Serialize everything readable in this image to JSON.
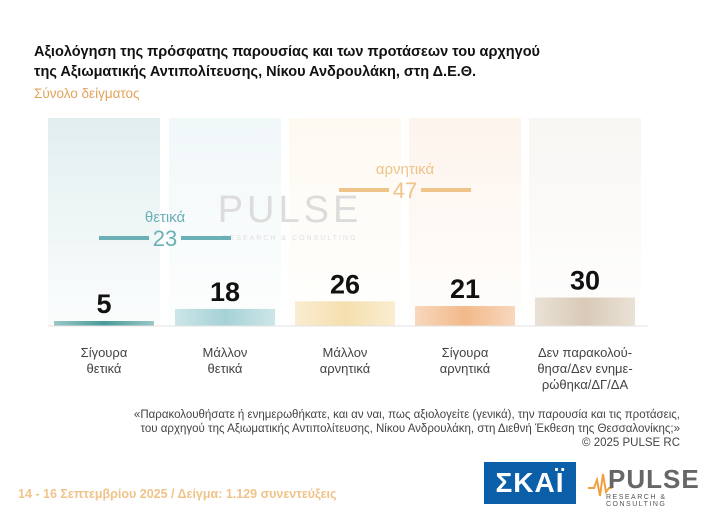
{
  "title_line1": "Αξιολόγηση της πρόσφατης παρουσίας και των προτάσεων του αρχηγού",
  "title_line2": "της Αξιωματικής Αντιπολίτευσης, Νίκου Ανδρουλάκη, στη Δ.Ε.Θ.",
  "subtitle": "Σύνολο δείγματος",
  "groups": {
    "positive": {
      "label": "θετικά",
      "value": "23"
    },
    "negative": {
      "label": "αρνητικά",
      "value": "47"
    }
  },
  "watermark": {
    "word": "PULSE",
    "sub": "RESEARCH & CONSULTING"
  },
  "quote_line1": "«Παρακολουθήσατε ή ενημερωθήκατε, και αν ναι, πως αξιολογείτε (γενικά), την παρουσία και τις προτάσεις,",
  "quote_line2": "του αρχηγού της Αξιωματικής Αντιπολίτευσης, Νίκου Ανδρουλάκη, στη Διεθνή Έκθεση της Θεσσαλονίκης;»",
  "copyright": "© 2025 PULSE RC",
  "footer": "14 - 16 Σεπτεμβρίου 2025  /  Δείγμα:  1.129 συνεντεύξεις",
  "logos": {
    "skai": "ΣΚΑΪ",
    "pulse": "PULSE",
    "pulse_sub": "RESEARCH & CONSULTING"
  },
  "chart_data": {
    "type": "bar",
    "categories": [
      [
        "Σίγουρα",
        "θετικά"
      ],
      [
        "Μάλλον",
        "θετικά"
      ],
      [
        "Μάλλον",
        "αρνητικά"
      ],
      [
        "Σίγουρα",
        "αρνητικά"
      ],
      [
        "Δεν παρακολού-",
        "θησα/Δεν ενημε-",
        "ρώθηκα/ΔΓ/ΔΑ"
      ]
    ],
    "values": [
      5,
      18,
      26,
      21,
      30
    ],
    "colors": [
      "#4a9a9a",
      "#a6d2d6",
      "#f5dfae",
      "#f2b98a",
      "#d9cab7"
    ],
    "ylim": [
      0,
      100
    ]
  }
}
